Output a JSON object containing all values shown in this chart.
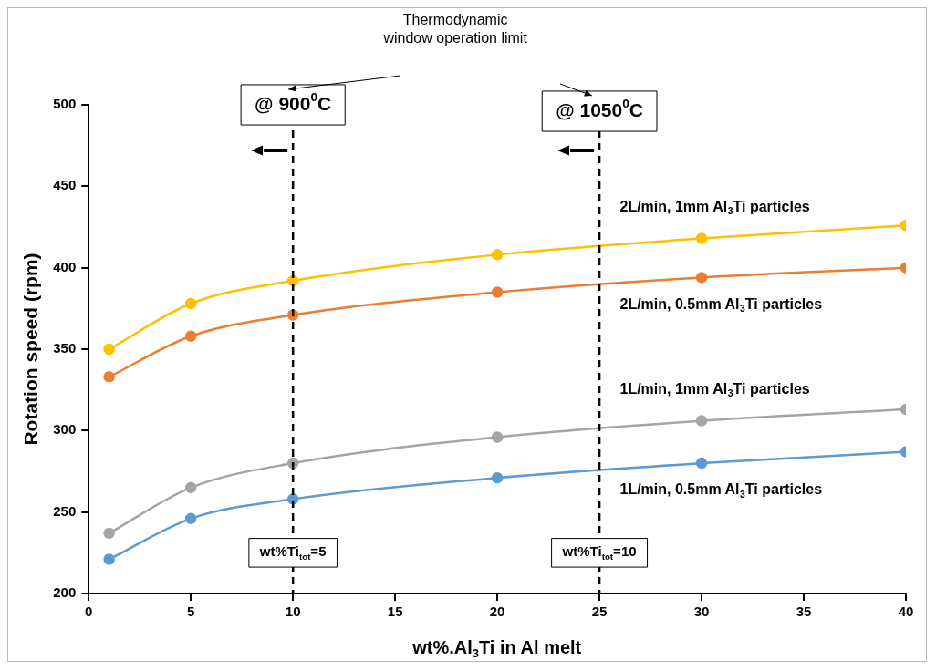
{
  "chart_data": {
    "type": "line",
    "x": [
      1,
      5,
      10,
      20,
      30,
      40
    ],
    "xlabel": "wt%.Al$_{3}$Ti in Al melt",
    "ylabel": "Rotation speed (rpm)",
    "series": [
      {
        "name": "2L/min, 1mm Al$_{3}$Ti particles",
        "color": "#ffc000",
        "values": [
          350,
          378,
          392,
          408,
          418,
          426
        ]
      },
      {
        "name": "2L/min, 0.5mm Al$_{3}$Ti particles",
        "color": "#ed7d31",
        "values": [
          333,
          358,
          371,
          385,
          394,
          400
        ]
      },
      {
        "name": "1L/min, 1mm Al$_{3}$Ti particles",
        "color": "#a5a5a5",
        "values": [
          237,
          265,
          280,
          296,
          306,
          313
        ]
      },
      {
        "name": "1L/min, 0.5mm Al$_{3}$Ti particles",
        "color": "#5b9bd5",
        "values": [
          221,
          246,
          258,
          271,
          280,
          287
        ]
      }
    ],
    "xlim": [
      0,
      40
    ],
    "xticks": [
      0,
      5,
      10,
      15,
      20,
      25,
      30,
      35,
      40
    ],
    "ylim": [
      200,
      500
    ],
    "yticks": [
      200,
      250,
      300,
      350,
      400,
      450,
      500
    ],
    "grid": false,
    "legend": false,
    "marker": "circle",
    "line_style": "solid",
    "ref_lines": [
      {
        "axis": "x",
        "value": 10,
        "label": "@ 900$^{0}$C",
        "color": "#000000",
        "line_style": "dashed"
      },
      {
        "axis": "x",
        "value": 25,
        "label": "@ 1050$^{0}$C",
        "color": "#000000",
        "line_style": "dashed"
      }
    ],
    "annotations": [
      "Thermodynamic window operation limit",
      {
        "text": "wt%Ti$_{tot}$=5",
        "x": 10,
        "y": 225
      },
      {
        "text": "wt%Ti$_{tot}$=10",
        "x": 25,
        "y": 225
      }
    ]
  }
}
